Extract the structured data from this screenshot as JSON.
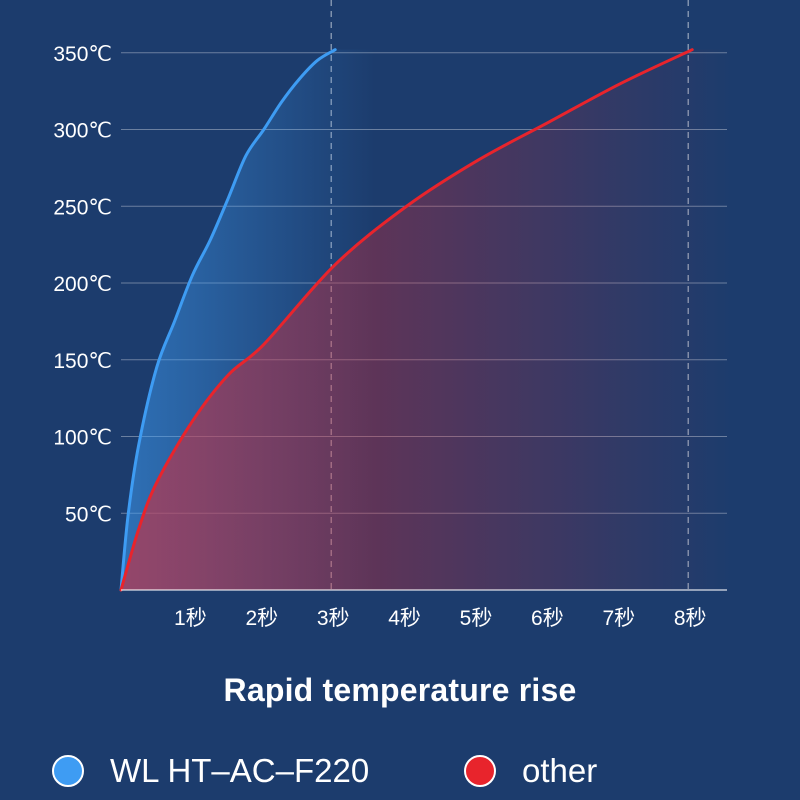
{
  "chart_data": {
    "type": "line",
    "title": "Rapid temperature rise",
    "x_ticks": [
      "1秒",
      "2秒",
      "3秒",
      "4秒",
      "5秒",
      "6秒",
      "7秒",
      "8秒"
    ],
    "y_ticks": [
      "50℃",
      "100℃",
      "150℃",
      "200℃",
      "250℃",
      "300℃",
      "350℃"
    ],
    "xlim": [
      0,
      8
    ],
    "ylim": [
      0,
      350
    ],
    "grid": true,
    "legend_position": "bottom",
    "series": [
      {
        "name": "WL HT-AC-F220",
        "color": "#3e9cf3",
        "x": [
          0,
          0.1,
          0.25,
          0.5,
          0.75,
          1,
          1.25,
          1.5,
          1.75,
          2,
          2.25,
          2.5,
          2.75,
          3
        ],
        "y": [
          0,
          49,
          95,
          145,
          175,
          205,
          228,
          255,
          283,
          300,
          318,
          333,
          345,
          352
        ]
      },
      {
        "name": "other",
        "color": "#e8242c",
        "x": [
          0,
          0.25,
          0.5,
          1,
          1.5,
          2,
          3,
          4,
          5,
          6,
          7,
          8
        ],
        "y": [
          0,
          40,
          70,
          110,
          140,
          160,
          212,
          250,
          280,
          305,
          330,
          352
        ]
      }
    ],
    "markers": [
      3,
      8
    ]
  },
  "legend": [
    {
      "label": "WL HT–AC–F220",
      "color": "#3e9cf3"
    },
    {
      "label": "other",
      "color": "#e8242c"
    }
  ]
}
